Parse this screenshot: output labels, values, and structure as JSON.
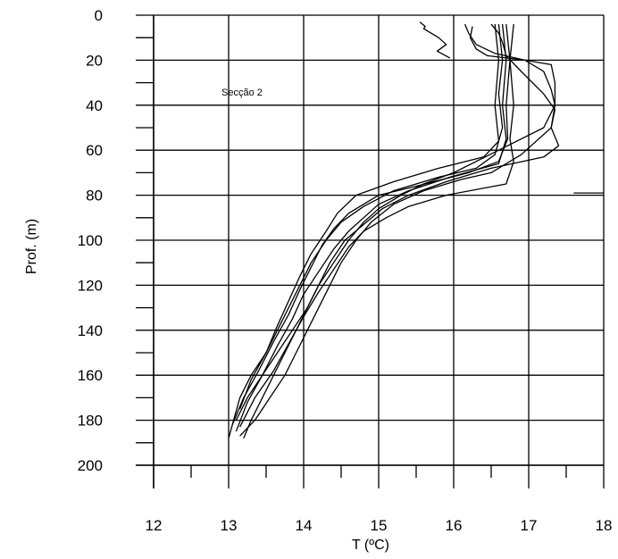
{
  "chart_data": {
    "type": "line",
    "title": "",
    "annotation": "Secção 2",
    "xlabel": "T (ºC)",
    "ylabel": "Prof. (m)",
    "xlim": [
      12,
      18
    ],
    "ylim": [
      0,
      200
    ],
    "y_inverted": true,
    "x_major_ticks": [
      12,
      13,
      14,
      15,
      16,
      17,
      18
    ],
    "y_major_ticks": [
      0,
      20,
      40,
      60,
      80,
      100,
      120,
      140,
      160,
      180,
      200
    ],
    "grid": true,
    "line_color": "#000000",
    "series": [
      {
        "x": [
          15.55,
          15.62,
          15.6,
          15.7,
          15.8,
          15.9,
          15.78,
          15.95
        ],
        "y": [
          3,
          5,
          6,
          8,
          10,
          13,
          16,
          19
        ]
      },
      {
        "x": [
          16.25,
          16.22,
          16.3,
          16.45,
          16.95,
          17.3,
          17.35,
          17.35,
          17.2,
          16.6,
          16.0,
          15.6,
          15.3,
          15.0,
          14.8,
          14.6,
          14.4,
          14.2,
          14.05,
          13.9,
          13.75,
          13.6,
          13.45,
          13.3,
          13.2
        ],
        "y": [
          5,
          10,
          15,
          18,
          20,
          22,
          30,
          40,
          50,
          60,
          70,
          75,
          80,
          86,
          92,
          100,
          110,
          120,
          130,
          140,
          150,
          160,
          170,
          180,
          188
        ]
      },
      {
        "x": [
          16.15,
          16.2,
          16.3,
          16.55,
          16.95,
          17.2,
          17.3,
          17.35,
          17.3,
          16.9,
          16.5,
          16.1,
          15.6,
          15.2,
          14.9,
          14.7,
          14.5,
          14.35,
          14.2,
          14.05,
          13.9,
          13.75,
          13.55,
          13.35,
          13.15
        ],
        "y": [
          4,
          8,
          13,
          17,
          20,
          25,
          33,
          40,
          50,
          62,
          70,
          73,
          78,
          84,
          92,
          100,
          110,
          120,
          130,
          140,
          150,
          160,
          170,
          180,
          187
        ]
      },
      {
        "x": [
          16.5,
          16.6,
          16.65,
          16.7,
          16.9,
          17.2,
          17.35,
          17.3,
          17.4,
          17.2,
          16.5,
          15.9,
          15.4,
          15.05,
          14.8,
          14.55,
          14.35,
          14.2,
          14.05,
          13.85,
          13.65,
          13.45,
          13.25,
          13.1
        ],
        "y": [
          4,
          8,
          12,
          18,
          25,
          35,
          42,
          50,
          58,
          63,
          68,
          74,
          80,
          86,
          93,
          100,
          110,
          120,
          130,
          140,
          150,
          160,
          170,
          180
        ]
      },
      {
        "x": [
          16.6,
          16.65,
          16.6,
          16.65,
          16.55,
          16.3,
          15.8,
          15.2,
          14.8,
          14.5,
          14.3,
          14.1,
          13.95,
          13.8,
          13.65,
          13.5,
          13.3,
          13.15,
          13.0
        ],
        "y": [
          4,
          20,
          35,
          50,
          62,
          68,
          72,
          78,
          85,
          92,
          100,
          110,
          120,
          130,
          140,
          150,
          160,
          170,
          188
        ]
      },
      {
        "x": [
          16.7,
          16.75,
          16.7,
          16.72,
          16.6,
          16.2,
          15.5,
          15.0,
          14.6,
          14.4,
          14.25,
          14.1,
          13.95,
          13.8,
          13.6,
          13.4,
          13.2,
          13.05
        ],
        "y": [
          4,
          20,
          40,
          55,
          65,
          70,
          76,
          80,
          88,
          95,
          102,
          112,
          122,
          133,
          145,
          158,
          170,
          182
        ]
      },
      {
        "x": [
          16.65,
          16.7,
          16.65,
          16.7,
          16.6,
          15.95,
          15.4,
          15.0,
          14.8,
          14.6,
          14.4,
          14.2,
          14.0,
          13.85,
          13.65,
          13.45,
          13.25,
          13.1
        ],
        "y": [
          4,
          20,
          40,
          55,
          66,
          72,
          78,
          84,
          90,
          96,
          104,
          114,
          124,
          135,
          147,
          160,
          172,
          185
        ]
      },
      {
        "x": [
          16.8,
          16.75,
          16.8,
          16.75,
          16.8,
          16.7,
          15.9,
          15.4,
          15.1,
          14.8,
          14.6,
          14.4,
          14.2,
          14.0,
          13.8,
          13.6,
          13.35,
          13.15
        ],
        "y": [
          4,
          20,
          40,
          55,
          65,
          75,
          80,
          85,
          90,
          96,
          103,
          113,
          123,
          134,
          146,
          158,
          170,
          183
        ]
      },
      {
        "x": [
          16.55,
          16.6,
          16.55,
          16.6,
          16.4,
          15.8,
          15.2,
          14.7,
          14.45,
          14.3,
          14.1,
          13.95,
          13.8,
          13.65,
          13.5,
          13.3,
          13.15
        ],
        "y": [
          4,
          20,
          40,
          56,
          63,
          68,
          74,
          80,
          88,
          96,
          106,
          116,
          127,
          138,
          150,
          162,
          175
        ]
      },
      {
        "x": [
          17.6,
          18.0
        ],
        "y": [
          79,
          79
        ]
      }
    ]
  }
}
